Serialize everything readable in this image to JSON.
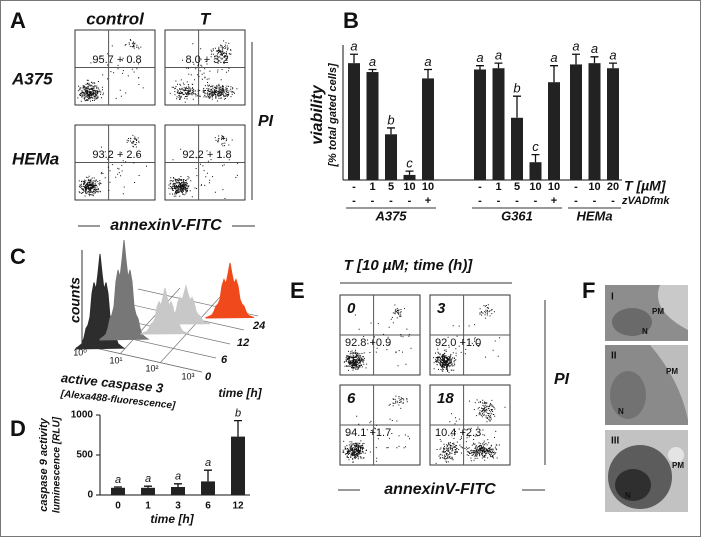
{
  "panel_a": {
    "letter": "A",
    "columns": [
      "control",
      "T"
    ],
    "rows": [
      "A375",
      "HEMa"
    ],
    "quadrant_values": [
      "95.7 + 0.8",
      "8.0 + 3.2",
      "93.2 + 2.6",
      "92.2 + 1.8"
    ],
    "y_label": "PI",
    "x_label": "annexinV-FITC"
  },
  "chart_data": [
    {
      "type": "bar",
      "panel": "B",
      "y_label": "viability",
      "y_sublabel": "[% total gated cells]",
      "row_labels": [
        "T [µM]",
        "zVADfmk"
      ],
      "ylim": [
        0,
        100
      ],
      "color": "#222222",
      "groups": [
        {
          "name": "A375",
          "categories": [
            "-",
            "1",
            "5",
            "10",
            "10"
          ],
          "zvad": [
            "-",
            "-",
            "-",
            "-",
            "+"
          ],
          "values": [
            92,
            85,
            36,
            4,
            80
          ],
          "errors": [
            7,
            2,
            5,
            3,
            7
          ],
          "letters": [
            "a",
            "a",
            "b",
            "c",
            "a"
          ]
        },
        {
          "name": "G361",
          "categories": [
            "-",
            "1",
            "5",
            "10",
            "10"
          ],
          "zvad": [
            "-",
            "-",
            "-",
            "-",
            "+"
          ],
          "values": [
            87,
            88,
            49,
            14,
            77
          ],
          "errors": [
            3,
            4,
            17,
            6,
            13
          ],
          "letters": [
            "a",
            "a",
            "b",
            "c",
            "a"
          ]
        },
        {
          "name": "HEMa",
          "categories": [
            "-",
            "10",
            "20"
          ],
          "zvad": [
            "-",
            "-",
            "-"
          ],
          "values": [
            91,
            92,
            88
          ],
          "errors": [
            8,
            5,
            4
          ],
          "letters": [
            "a",
            "a",
            "a"
          ]
        }
      ]
    },
    {
      "type": "bar",
      "panel": "D",
      "y_label": "caspase 9 activity",
      "y_sublabel": "luminescence [RLU]",
      "x_label": "time [h]",
      "categories": [
        "0",
        "1",
        "3",
        "6",
        "12"
      ],
      "values": [
        90,
        90,
        100,
        170,
        730
      ],
      "errors": [
        10,
        20,
        40,
        140,
        200
      ],
      "letters": [
        "a",
        "a",
        "a",
        "a",
        "b"
      ],
      "ylim": [
        0,
        1000
      ],
      "yticks": [
        0,
        500,
        1000
      ],
      "color": "#222222"
    }
  ],
  "panel_c": {
    "letter": "C",
    "y_label": "counts",
    "x_label": "active caspase 3",
    "x_sublabel": "[Alexa488-fluorescence]",
    "x_ticks": [
      "10⁰",
      "10¹",
      "10²",
      "10³"
    ],
    "time_ticks": [
      "0",
      "6",
      "12",
      "24"
    ],
    "time_label": "time [h]"
  },
  "panel_e": {
    "letter": "E",
    "title": "T [10 µM; time (h)]",
    "times": [
      "0",
      "3",
      "6",
      "18"
    ],
    "quadrant_values": [
      "92.8 +0.9",
      "92.0 +1.0",
      "94.1 +1.7",
      "10.4 +2.3"
    ],
    "y_label": "PI",
    "x_label": "annexinV-FITC"
  },
  "panel_f": {
    "letter": "F",
    "images": [
      {
        "label": "I",
        "pm": "PM",
        "n": "N"
      },
      {
        "label": "II",
        "pm": "PM",
        "n": "N"
      },
      {
        "label": "III",
        "pm": "PM",
        "n": "N"
      }
    ]
  }
}
